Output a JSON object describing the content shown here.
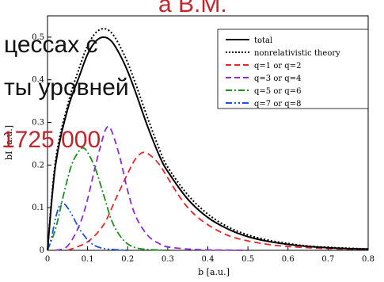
{
  "overlay_text": {
    "line1": "а В.М.",
    "line2": "цессах с",
    "line3": "ты уровней",
    "line4": "1725 000"
  },
  "colors": {
    "overlay_red": "#c0262d",
    "overlay_black": "#111111",
    "total": "#000000",
    "nonrel": "#000000",
    "q12": "#e8262a",
    "q34": "#8c2bd6",
    "q56": "#1a8f1a",
    "q78": "#1f4fe0"
  },
  "chart_data": {
    "type": "line",
    "xlabel": "b [a.u.]",
    "ylabel": "bI [a.u.]",
    "xlim": [
      0,
      0.8
    ],
    "ylim": [
      0,
      0.55
    ],
    "xticks": [
      "0",
      "0.1",
      "0.2",
      "0.3",
      "0.4",
      "0.5",
      "0.6",
      "0.7",
      "0.8"
    ],
    "yticks": [
      "0",
      "0.1",
      "0.2",
      "0.3",
      "0.4",
      "0.5"
    ],
    "legend_position": "top-right",
    "series": [
      {
        "name": "total",
        "style": "solid",
        "x": [
          0,
          0.02,
          0.05,
          0.08,
          0.1,
          0.12,
          0.14,
          0.16,
          0.18,
          0.2,
          0.22,
          0.25,
          0.28,
          0.3,
          0.35,
          0.4,
          0.45,
          0.5,
          0.55,
          0.6,
          0.65,
          0.7,
          0.75,
          0.8
        ],
        "y": [
          0.0,
          0.2,
          0.33,
          0.41,
          0.46,
          0.49,
          0.5,
          0.49,
          0.46,
          0.42,
          0.37,
          0.29,
          0.22,
          0.185,
          0.12,
          0.077,
          0.05,
          0.032,
          0.021,
          0.014,
          0.009,
          0.006,
          0.004,
          0.003
        ]
      },
      {
        "name": "nonrelativistic theory",
        "style": "dotted",
        "x": [
          0,
          0.02,
          0.05,
          0.08,
          0.1,
          0.12,
          0.14,
          0.16,
          0.18,
          0.2,
          0.22,
          0.25,
          0.28,
          0.3,
          0.35,
          0.4,
          0.45,
          0.5,
          0.55,
          0.6,
          0.65,
          0.7,
          0.75,
          0.8
        ],
        "y": [
          0.0,
          0.21,
          0.34,
          0.43,
          0.48,
          0.51,
          0.52,
          0.51,
          0.48,
          0.44,
          0.39,
          0.31,
          0.235,
          0.195,
          0.13,
          0.085,
          0.055,
          0.036,
          0.024,
          0.016,
          0.01,
          0.007,
          0.005,
          0.003
        ]
      },
      {
        "name": "q=1 or q=2",
        "style": "dashed",
        "x": [
          0.05,
          0.1,
          0.14,
          0.17,
          0.2,
          0.22,
          0.24,
          0.26,
          0.28,
          0.3,
          0.33,
          0.36,
          0.4,
          0.45,
          0.5,
          0.55,
          0.6,
          0.7,
          0.8
        ],
        "y": [
          0.0,
          0.02,
          0.06,
          0.12,
          0.18,
          0.215,
          0.23,
          0.22,
          0.2,
          0.17,
          0.125,
          0.09,
          0.06,
          0.035,
          0.022,
          0.014,
          0.009,
          0.004,
          0.002
        ]
      },
      {
        "name": "q=3 or q=4",
        "style": "dashed",
        "x": [
          0.02,
          0.05,
          0.08,
          0.1,
          0.12,
          0.14,
          0.15,
          0.16,
          0.18,
          0.2,
          0.22,
          0.25,
          0.28,
          0.3,
          0.35,
          0.4,
          0.45,
          0.5
        ],
        "y": [
          0.0,
          0.01,
          0.06,
          0.12,
          0.2,
          0.27,
          0.29,
          0.28,
          0.22,
          0.14,
          0.08,
          0.035,
          0.015,
          0.008,
          0.003,
          0.001,
          0.0005,
          0.0
        ]
      },
      {
        "name": "q=5 or q=6",
        "style": "dashdot",
        "x": [
          0.0,
          0.02,
          0.04,
          0.06,
          0.08,
          0.09,
          0.1,
          0.12,
          0.14,
          0.16,
          0.18,
          0.2,
          0.22,
          0.25,
          0.3
        ],
        "y": [
          0.0,
          0.05,
          0.13,
          0.2,
          0.235,
          0.24,
          0.23,
          0.19,
          0.13,
          0.07,
          0.035,
          0.015,
          0.006,
          0.002,
          0.0
        ]
      },
      {
        "name": "q=7 or q=8",
        "style": "dashdotdot",
        "x": [
          0.0,
          0.01,
          0.02,
          0.03,
          0.04,
          0.05,
          0.06,
          0.08,
          0.1,
          0.12,
          0.15,
          0.2
        ],
        "y": [
          0.0,
          0.03,
          0.075,
          0.105,
          0.11,
          0.1,
          0.085,
          0.05,
          0.025,
          0.01,
          0.003,
          0.0
        ]
      }
    ]
  }
}
